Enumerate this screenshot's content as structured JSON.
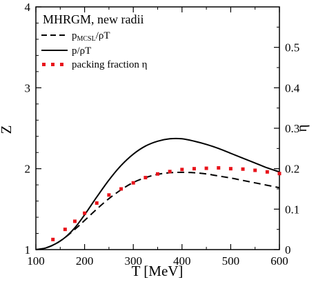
{
  "chart_data": {
    "type": "line",
    "title": "MHRGM, new radii",
    "xlabel": "T [MeV]",
    "ylabel": "Z",
    "y2label": "η",
    "xlim": [
      100,
      600
    ],
    "ylim": [
      1,
      4
    ],
    "y2lim": [
      0,
      0.6
    ],
    "xticks": [
      "100",
      "200",
      "300",
      "400",
      "500",
      "600"
    ],
    "yticks": [
      "1",
      "2",
      "3",
      "4"
    ],
    "y2ticks": [
      "0",
      "0.1",
      "0.2",
      "0.3",
      "0.4",
      "0.5"
    ],
    "grid": false,
    "legend_position": "top-left",
    "series": [
      {
        "name": "p_MCSL/ρT",
        "label_main": "p",
        "label_sub": "MCSL",
        "label_rest": "/ρT",
        "style": "dashed",
        "color": "#000000",
        "axis": "left",
        "x": [
          100,
          120,
          140,
          160,
          180,
          200,
          225,
          250,
          275,
          300,
          325,
          350,
          375,
          400,
          425,
          450,
          475,
          500,
          525,
          550,
          575,
          600
        ],
        "y": [
          1.0,
          1.02,
          1.07,
          1.15,
          1.25,
          1.36,
          1.5,
          1.63,
          1.74,
          1.83,
          1.89,
          1.93,
          1.95,
          1.955,
          1.95,
          1.935,
          1.91,
          1.885,
          1.855,
          1.825,
          1.795,
          1.765
        ]
      },
      {
        "name": "p/ρT",
        "style": "solid",
        "color": "#000000",
        "axis": "left",
        "x": [
          100,
          120,
          140,
          160,
          180,
          200,
          225,
          250,
          275,
          300,
          325,
          350,
          375,
          400,
          425,
          450,
          475,
          500,
          525,
          550,
          575,
          600
        ],
        "y": [
          1.0,
          1.02,
          1.07,
          1.15,
          1.27,
          1.43,
          1.65,
          1.86,
          2.04,
          2.18,
          2.28,
          2.34,
          2.37,
          2.37,
          2.34,
          2.3,
          2.25,
          2.19,
          2.13,
          2.07,
          2.01,
          1.96
        ]
      },
      {
        "name": "packing fraction η",
        "style": "dotted",
        "color": "#e8141b",
        "axis": "right",
        "x": [
          135,
          160,
          180,
          200,
          225,
          250,
          275,
          300,
          325,
          350,
          375,
          400,
          425,
          450,
          475,
          500,
          525,
          550,
          575,
          600
        ],
        "y": [
          0.025,
          0.05,
          0.07,
          0.09,
          0.115,
          0.135,
          0.15,
          0.165,
          0.178,
          0.187,
          0.193,
          0.198,
          0.2,
          0.201,
          0.202,
          0.2,
          0.199,
          0.196,
          0.192,
          0.188
        ]
      }
    ]
  }
}
